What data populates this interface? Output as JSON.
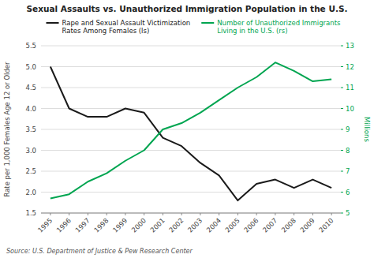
{
  "chart_data": {
    "type": "line",
    "title": "Sexual Assaults vs. Unauthorized Immigration Population in the U.S.",
    "x": [
      1995,
      1996,
      1997,
      1998,
      1999,
      2000,
      2001,
      2002,
      2003,
      2004,
      2005,
      2006,
      2007,
      2008,
      2009,
      2010
    ],
    "xlim": [
      1994.5,
      2010.5
    ],
    "xticks": [
      1995,
      1996,
      1997,
      1998,
      1999,
      2000,
      2001,
      2002,
      2003,
      2004,
      2005,
      2006,
      2007,
      2008,
      2009,
      2010
    ],
    "ylim": [
      1.5,
      5.5
    ],
    "yticks": [
      1.5,
      {
        "value": 2,
        "label": "2.0"
      },
      2.5,
      {
        "value": 3,
        "label": "3.0"
      },
      3.5,
      {
        "value": 4,
        "label": "4.0"
      },
      4.5,
      {
        "value": 5,
        "label": "5.0"
      },
      5.5
    ],
    "y2lim": [
      5,
      13
    ],
    "y2ticks": [
      5,
      6,
      7,
      8,
      9,
      10,
      11,
      12,
      13
    ],
    "ylabel": "Rate per 1,000 Females Age 12 or Older",
    "y2label": "Millions",
    "series": [
      {
        "name": "Rape and Sexual Assault Victimization\nRates Among Females (ls)",
        "color": "#1a1a1a",
        "values": [
          5.0,
          4.0,
          3.8,
          3.8,
          4.0,
          3.9,
          3.3,
          3.1,
          2.7,
          2.4,
          1.8,
          2.2,
          2.3,
          2.1,
          2.3,
          2.1
        ]
      },
      {
        "name": "Number of Unauthorized Immigrants\nLiving in the U.S. (rs)",
        "color": "#00a550",
        "axis": "y2",
        "values": [
          5.7,
          5.9,
          6.5,
          6.9,
          7.5,
          8.0,
          9.0,
          9.3,
          9.8,
          10.4,
          11.0,
          11.5,
          12.2,
          11.8,
          11.3,
          11.4
        ]
      }
    ],
    "grid": true,
    "legend": "upper right",
    "annotations": [
      "Source: U.S. Department of Justice & Pew Research Center"
    ]
  }
}
